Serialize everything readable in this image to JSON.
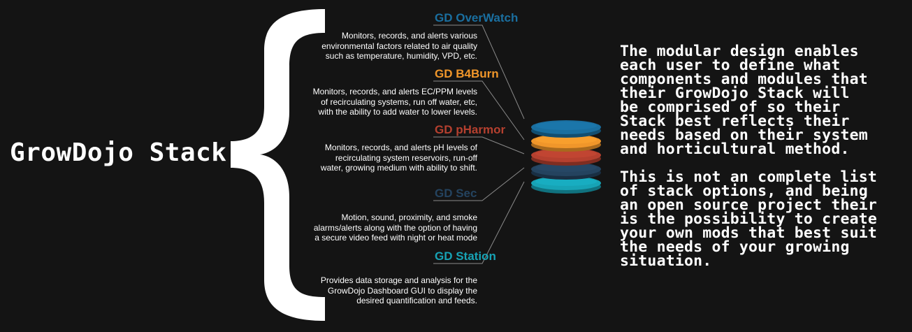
{
  "title": "GrowDojo Stack",
  "modules": [
    {
      "name": "GD OverWatch",
      "color": "#1a6fa0",
      "description": [
        "Monitors, records, and alerts various",
        "environmental factors related to air quality",
        "such as temperature, humidity, VPD, etc."
      ]
    },
    {
      "name": "GD B4Burn",
      "color": "#f0962a",
      "description": [
        "Monitors, records, and alerts EC/PPM levels",
        "of recirculating systems, run off water, etc,",
        "with the ability to add water to lower levels."
      ]
    },
    {
      "name": "GD pHarmor",
      "color": "#b5402f",
      "description": [
        "Monitors, records, and alerts pH levels of",
        "recirculating system reservoirs, run-off",
        "water, growing medium with ability to shift."
      ]
    },
    {
      "name": "GD Sec",
      "color": "#24435f",
      "description": [
        "Motion, sound, proximity, and smoke",
        "alarms/alerts along with the option of having",
        "a secure video feed with night or heat mode"
      ]
    },
    {
      "name": "GD Station",
      "color": "#17a3b5",
      "description": [
        "Provides data storage and analysis for the",
        "GrowDojo Dashboard GUI to display the",
        "desired quantification and feeds."
      ]
    }
  ],
  "side_text": {
    "paragraph1": [
      "The modular design enables",
      "each user to define what",
      "components and modules that",
      "their GrowDojo Stack will",
      "be comprised of so their",
      "Stack best reflects their",
      "needs based on their system",
      "and horticultural method."
    ],
    "paragraph2": [
      "This is not an complete list",
      "of stack options, and being",
      "an open source project their",
      "is the possibility to create",
      "your own mods that best suit",
      "the needs of your growing",
      "situation."
    ]
  }
}
